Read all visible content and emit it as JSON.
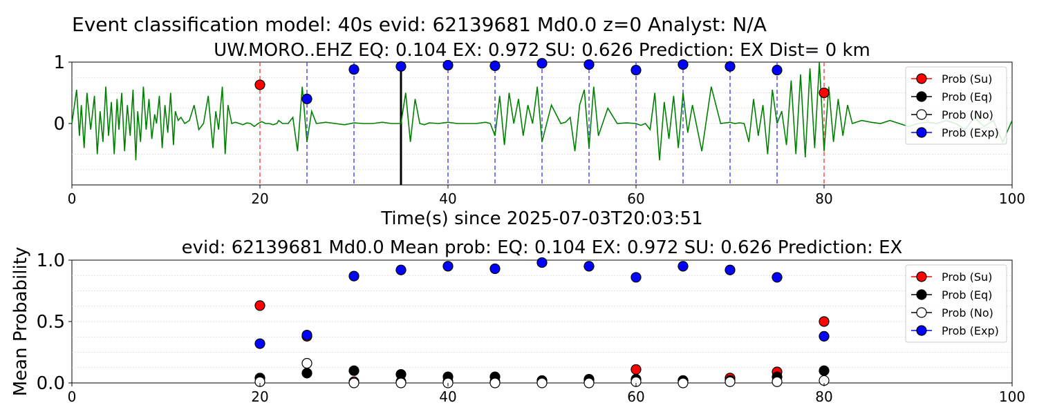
{
  "suptitle": "Event classification model: 40s evid: 62139681 Md0.0 z=0 Analyst: N/A",
  "colors": {
    "su": "#ff0000",
    "eq": "#000000",
    "no": "#ffffff",
    "exp": "#0000ff",
    "waveform": "#008000",
    "grid": "#d9d9d9"
  },
  "chart_data": [
    {
      "type": "line",
      "title": "UW.MORO..EHZ   EQ: 0.104  EX: 0.972  SU: 0.626   Prediction: EX    Dist= 0 km",
      "xlabel": "Time(s) since 2025-07-03T20:03:51",
      "ylabel": "",
      "xlim": [
        0,
        100
      ],
      "ylim": [
        -1,
        1
      ],
      "xticks": [
        0,
        20,
        40,
        60,
        80,
        100
      ],
      "xtick_labels": [
        "0",
        "20",
        "40",
        "60",
        "80",
        "100"
      ],
      "yticks": [
        1,
        0
      ],
      "ytick_labels": [
        "1",
        "0"
      ],
      "grid": true,
      "legend": "top-right",
      "legend_entries": [
        "Prob (Su)",
        "Prob (Eq)",
        "Prob (No)",
        "Prob (Exp)"
      ],
      "vlines": [
        {
          "x": 20,
          "color": "red",
          "style": "dashed"
        },
        {
          "x": 25,
          "color": "blue",
          "style": "dashed"
        },
        {
          "x": 30,
          "color": "blue",
          "style": "dashed"
        },
        {
          "x": 35,
          "color": "black",
          "style": "solid"
        },
        {
          "x": 40,
          "color": "blue",
          "style": "dashed"
        },
        {
          "x": 45,
          "color": "blue",
          "style": "dashed"
        },
        {
          "x": 50,
          "color": "blue",
          "style": "dashed"
        },
        {
          "x": 55,
          "color": "blue",
          "style": "dashed"
        },
        {
          "x": 60,
          "color": "blue",
          "style": "dashed"
        },
        {
          "x": 65,
          "color": "blue",
          "style": "dashed"
        },
        {
          "x": 70,
          "color": "blue",
          "style": "dashed"
        },
        {
          "x": 75,
          "color": "blue",
          "style": "dashed"
        },
        {
          "x": 80,
          "color": "red",
          "style": "dashed"
        }
      ],
      "markers": [
        {
          "x": 20,
          "y": 0.63,
          "class": "su"
        },
        {
          "x": 25,
          "y": 0.4,
          "class": "exp"
        },
        {
          "x": 30,
          "y": 0.88,
          "class": "exp"
        },
        {
          "x": 35,
          "y": 0.93,
          "class": "exp"
        },
        {
          "x": 40,
          "y": 0.95,
          "class": "exp"
        },
        {
          "x": 45,
          "y": 0.94,
          "class": "exp"
        },
        {
          "x": 50,
          "y": 0.98,
          "class": "exp"
        },
        {
          "x": 55,
          "y": 0.96,
          "class": "exp"
        },
        {
          "x": 60,
          "y": 0.87,
          "class": "exp"
        },
        {
          "x": 65,
          "y": 0.96,
          "class": "exp"
        },
        {
          "x": 70,
          "y": 0.93,
          "class": "exp"
        },
        {
          "x": 75,
          "y": 0.87,
          "class": "exp"
        },
        {
          "x": 80,
          "y": 0.5,
          "class": "su"
        }
      ],
      "series": [
        {
          "name": "waveform",
          "x": [
            0,
            0.5,
            0.8,
            1.0,
            1.3,
            1.6,
            2.0,
            2.4,
            2.7,
            3.0,
            3.3,
            3.6,
            3.9,
            4.2,
            4.5,
            4.8,
            5.0,
            5.3,
            5.6,
            5.9,
            6.2,
            6.5,
            6.8,
            7.0,
            7.3,
            7.6,
            7.9,
            8.2,
            8.5,
            8.8,
            9.0,
            9.3,
            9.6,
            9.9,
            10.2,
            10.5,
            10.8,
            11.0,
            11.3,
            11.6,
            12.0,
            12.5,
            13.0,
            13.5,
            14.0,
            14.5,
            15.0,
            15.3,
            15.6,
            16.0,
            16.3,
            16.6,
            17.0,
            17.4,
            17.8,
            18.2,
            18.6,
            19.0,
            19.4,
            19.8,
            20.2,
            20.6,
            21.0,
            21.4,
            21.8,
            22.0,
            22.4,
            22.8,
            23.0,
            23.5,
            24.0,
            24.5,
            25.0,
            25.5,
            26.0,
            27.0,
            28.0,
            29.0,
            30.0,
            31.0,
            32.0,
            33.0,
            34.0,
            34.5,
            35.0,
            35.5,
            36.0,
            36.5,
            37.0,
            37.5,
            38.0,
            39.0,
            40.0,
            41.0,
            42.0,
            43.0,
            44.0,
            44.5,
            45.0,
            45.5,
            46.0,
            46.5,
            47.0,
            47.5,
            48.0,
            48.5,
            49.0,
            49.5,
            50.0,
            51.0,
            52.0,
            52.5,
            53.0,
            53.5,
            54.0,
            54.5,
            55.0,
            55.5,
            56.0,
            57.0,
            58.0,
            59.0,
            60.0,
            60.5,
            61.0,
            61.5,
            62.0,
            62.5,
            63.0,
            63.5,
            64.0,
            64.5,
            65.0,
            65.5,
            66.0,
            67.0,
            68.0,
            69.0,
            70.0,
            70.5,
            71.0,
            71.5,
            72.0,
            72.5,
            73.0,
            73.5,
            74.0,
            74.5,
            75.0,
            75.5,
            76.0,
            76.5,
            77.0,
            77.5,
            78.0,
            78.5,
            79.0,
            79.5,
            80.0,
            80.5,
            81.0,
            81.5,
            82.0,
            82.5,
            83.0,
            84.0,
            85.0,
            86.0,
            87.0,
            88.0,
            89.0,
            90.0,
            91.0,
            92.0,
            93.0,
            94.0,
            95.0,
            96.0,
            97.0,
            98.0,
            99.0,
            100.0
          ],
          "y": [
            0,
            0.55,
            -0.2,
            0.3,
            -0.4,
            0.5,
            -0.1,
            0.45,
            -0.5,
            0.2,
            -0.3,
            0.6,
            -0.2,
            0.35,
            -0.5,
            0.4,
            -0.1,
            0.5,
            -0.45,
            0.3,
            -0.2,
            0.55,
            -0.6,
            0.2,
            -0.3,
            0.6,
            -0.1,
            0.4,
            -0.25,
            0.15,
            0.0,
            0.45,
            -0.4,
            0.3,
            -0.15,
            0.5,
            -0.35,
            0.2,
            0.05,
            0.1,
            0.0,
            0.05,
            0.3,
            -0.1,
            0.0,
            0.45,
            -0.4,
            0.2,
            -0.1,
            0.6,
            -0.5,
            0.3,
            0.0,
            0.02,
            0.0,
            -0.02,
            0.01,
            0.0,
            -0.05,
            0.0,
            0.03,
            0.0,
            0.0,
            -0.02,
            0.0,
            0.05,
            0.0,
            0.0,
            0.0,
            0.1,
            -0.45,
            0.6,
            -0.3,
            0.2,
            0.0,
            0.02,
            0.0,
            -0.02,
            0.01,
            0.0,
            0.0,
            0.02,
            0.0,
            0.0,
            0.0,
            0.5,
            -0.3,
            0.4,
            0.0,
            -0.02,
            0.01,
            0.0,
            0.02,
            0.0,
            0.0,
            0.0,
            0.02,
            0.0,
            -0.2,
            0.45,
            -0.35,
            0.5,
            0.0,
            0.4,
            -0.2,
            0.3,
            0.0,
            0.6,
            -0.3,
            0.3,
            0.0,
            0.02,
            0.1,
            -0.45,
            0.3,
            0.55,
            -0.4,
            0.6,
            -0.2,
            0.25,
            0.0,
            0.01,
            0.0,
            -0.03,
            0.0,
            -0.1,
            0.5,
            -0.6,
            0.35,
            -0.25,
            0.45,
            -0.4,
            0.5,
            -0.15,
            0.3,
            -0.45,
            0.6,
            0.0,
            0.02,
            0.0,
            0.01,
            0.0,
            -0.3,
            0.4,
            -0.2,
            0.3,
            -0.5,
            0.55,
            0.0,
            0.2,
            -0.35,
            0.7,
            -0.5,
            0.8,
            -0.55,
            0.9,
            -0.4,
            1.0,
            -0.45,
            0.6,
            -0.3,
            0.4,
            -0.2,
            0.3,
            0.0,
            0.05,
            0.02,
            0.0,
            0.05,
            0.0,
            -0.05,
            0.0,
            0.02,
            0.0,
            0.05,
            0.0,
            -0.1,
            0.1,
            -0.05,
            0.05,
            -0.3,
            0.05
          ]
        }
      ]
    },
    {
      "type": "scatter",
      "title": "evid: 62139681  Md0.0   Mean prob:   EQ: 0.104  EX: 0.972  SU: 0.626   Prediction: EX",
      "xlabel": "",
      "ylabel": "Mean Probability",
      "xlim": [
        0,
        100
      ],
      "ylim": [
        0,
        1
      ],
      "xticks": [
        0,
        20,
        40,
        60,
        80,
        100
      ],
      "xtick_labels": [
        "0",
        "20",
        "40",
        "60",
        "80",
        "100"
      ],
      "yticks": [
        0.0,
        0.5,
        1.0
      ],
      "ytick_labels": [
        "0.0",
        "0.5",
        "1.0"
      ],
      "grid": true,
      "legend": "top-right",
      "legend_entries": [
        "Prob (Su)",
        "Prob (Eq)",
        "Prob (No)",
        "Prob (Exp)"
      ],
      "series": [
        {
          "name": "Prob (Su)",
          "class": "su",
          "x": [
            20,
            25,
            30,
            35,
            40,
            45,
            50,
            55,
            60,
            65,
            70,
            75,
            80
          ],
          "values": [
            0.63,
            0.38,
            0.01,
            0.01,
            0.01,
            0.01,
            0.01,
            0.01,
            0.11,
            0.02,
            0.04,
            0.09,
            0.5
          ]
        },
        {
          "name": "Prob (Eq)",
          "class": "eq",
          "x": [
            20,
            25,
            30,
            35,
            40,
            45,
            50,
            55,
            60,
            65,
            70,
            75,
            80
          ],
          "values": [
            0.04,
            0.08,
            0.1,
            0.07,
            0.05,
            0.05,
            0.02,
            0.03,
            0.03,
            0.02,
            0.02,
            0.05,
            0.1
          ]
        },
        {
          "name": "Prob (No)",
          "class": "no",
          "x": [
            20,
            25,
            30,
            35,
            40,
            45,
            50,
            55,
            60,
            65,
            70,
            75,
            80
          ],
          "values": [
            0.01,
            0.16,
            0.0,
            0.0,
            0.0,
            0.0,
            0.0,
            0.0,
            0.01,
            0.0,
            0.01,
            0.01,
            0.02
          ]
        },
        {
          "name": "Prob (Exp)",
          "class": "exp",
          "x": [
            20,
            25,
            30,
            35,
            40,
            45,
            50,
            55,
            60,
            65,
            70,
            75,
            80
          ],
          "values": [
            0.32,
            0.39,
            0.87,
            0.92,
            0.95,
            0.93,
            0.98,
            0.95,
            0.86,
            0.95,
            0.92,
            0.86,
            0.38
          ]
        }
      ]
    }
  ]
}
